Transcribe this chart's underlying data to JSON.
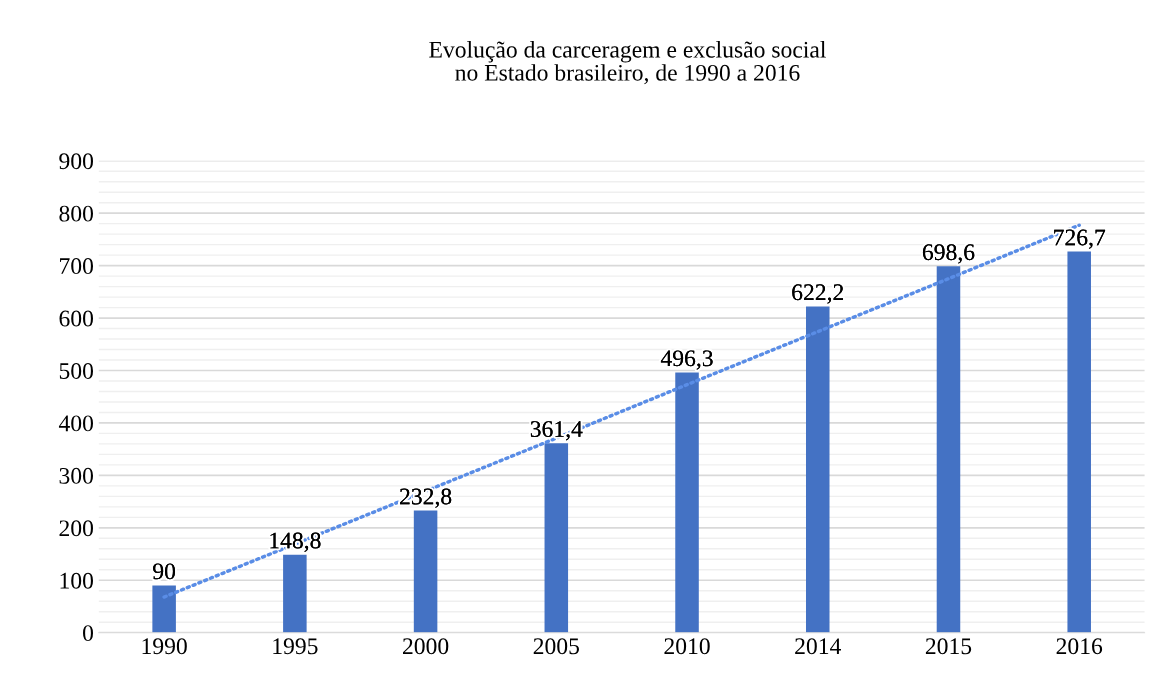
{
  "chart_data": {
    "type": "bar",
    "title": "Evolução da carceragem e exclusão social\nno Estado brasileiro, de 1990 a 2016",
    "categories": [
      "1990",
      "1995",
      "2000",
      "2005",
      "2010",
      "2014",
      "2015",
      "2016"
    ],
    "series": [
      {
        "color": "#4472c4",
        "values": [
          90,
          148.8,
          232.8,
          361.4,
          496.3,
          622.2,
          698.6,
          726.7
        ],
        "value_labels": [
          "90",
          "148,8",
          "232,8",
          "361,4",
          "496,3",
          "622,2",
          "698,6",
          "726,7"
        ]
      },
      {
        "type": "line",
        "color": "#5a8de6",
        "line_style": "dotted",
        "values": [
          68,
          169,
          270,
          371,
          473,
          574,
          675,
          777
        ]
      }
    ],
    "ylim": [
      0,
      900
    ],
    "yticks": [
      0,
      100,
      200,
      300,
      400,
      500,
      600,
      700,
      800,
      900
    ],
    "grid": "y",
    "legend": false
  }
}
